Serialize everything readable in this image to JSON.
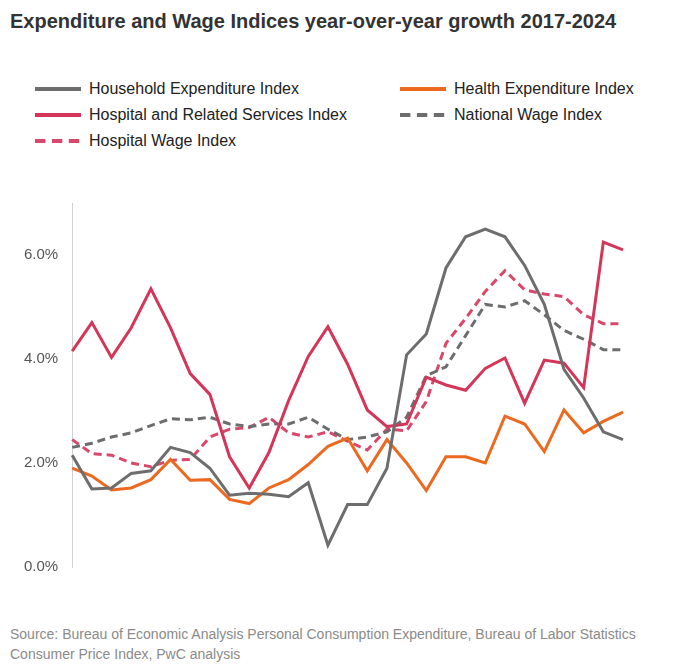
{
  "chart_data": {
    "type": "line",
    "title": "Expenditure and Wage Indices year-over-year growth 2017-2024",
    "source": "Source: Bureau of Economic Analysis Personal Consumption Expenditure, Bureau of Labor Statistics Consumer Price Index, PwC analysis",
    "categories": [
      null,
      null,
      null,
      null,
      null,
      null,
      null,
      null,
      null,
      null,
      null,
      null,
      null,
      null,
      null,
      null,
      null,
      null,
      null,
      null,
      null,
      null,
      null,
      null,
      null,
      null,
      null,
      null,
      null
    ],
    "series": [
      {
        "name": "Household Expenditure Index",
        "color": "#6d6d6d",
        "line_style": "solid",
        "values": [
          2.15,
          1.5,
          1.52,
          1.8,
          1.85,
          2.3,
          2.2,
          1.9,
          1.38,
          1.42,
          1.4,
          1.35,
          1.62,
          0.42,
          1.2,
          1.2,
          1.9,
          4.08,
          4.48,
          5.75,
          6.35,
          6.5,
          6.35,
          5.8,
          5.05,
          3.8,
          3.25,
          2.6,
          2.45
        ]
      },
      {
        "name": "Health Expenditure Index",
        "color": "#eb6a1f",
        "line_style": "solid",
        "values": [
          1.9,
          1.75,
          1.48,
          1.52,
          1.68,
          2.07,
          1.67,
          1.68,
          1.3,
          1.22,
          1.52,
          1.68,
          1.97,
          2.32,
          2.48,
          1.85,
          2.45,
          2.0,
          1.47,
          2.12,
          2.12,
          2.0,
          2.9,
          2.75,
          2.22,
          3.02,
          2.58,
          2.8,
          2.98
        ]
      },
      {
        "name": "Hospital and Related Services Index",
        "color": "#d4365a",
        "line_style": "solid",
        "values": [
          4.15,
          4.7,
          4.03,
          4.6,
          5.35,
          4.6,
          3.72,
          3.32,
          2.12,
          1.52,
          2.2,
          3.2,
          4.05,
          4.62,
          3.9,
          3.02,
          2.7,
          2.75,
          3.65,
          3.5,
          3.4,
          3.82,
          4.02,
          3.15,
          3.98,
          3.92,
          3.45,
          6.25,
          6.1
        ]
      },
      {
        "name": "National Wage Index",
        "color": "#6d6d6d",
        "line_style": "dashed",
        "values": [
          2.3,
          2.38,
          2.5,
          2.58,
          2.72,
          2.85,
          2.83,
          2.88,
          2.75,
          2.7,
          2.75,
          2.75,
          2.88,
          2.65,
          2.45,
          2.5,
          2.6,
          2.88,
          3.68,
          3.85,
          4.45,
          5.05,
          5.0,
          5.12,
          4.85,
          4.55,
          4.38,
          4.18,
          4.18
        ]
      },
      {
        "name": "Hospital Wage Index",
        "color": "#d9486a",
        "line_style": "dashed",
        "values": [
          2.45,
          2.18,
          2.15,
          2.0,
          1.93,
          2.05,
          2.07,
          2.5,
          2.65,
          2.68,
          2.88,
          2.58,
          2.5,
          2.6,
          2.42,
          2.25,
          2.65,
          2.62,
          3.18,
          4.3,
          4.78,
          5.3,
          5.7,
          5.33,
          5.25,
          5.2,
          4.85,
          4.68,
          4.68
        ]
      }
    ],
    "ylim": [
      0,
      7
    ],
    "yticks": [
      {
        "value": 0,
        "label": "0.0%"
      },
      {
        "value": 2,
        "label": "2.0%"
      },
      {
        "value": 4,
        "label": "4.0%"
      },
      {
        "value": 6,
        "label": "6.0%"
      }
    ],
    "grid": false,
    "legend": "top",
    "tick_labels": "y"
  }
}
